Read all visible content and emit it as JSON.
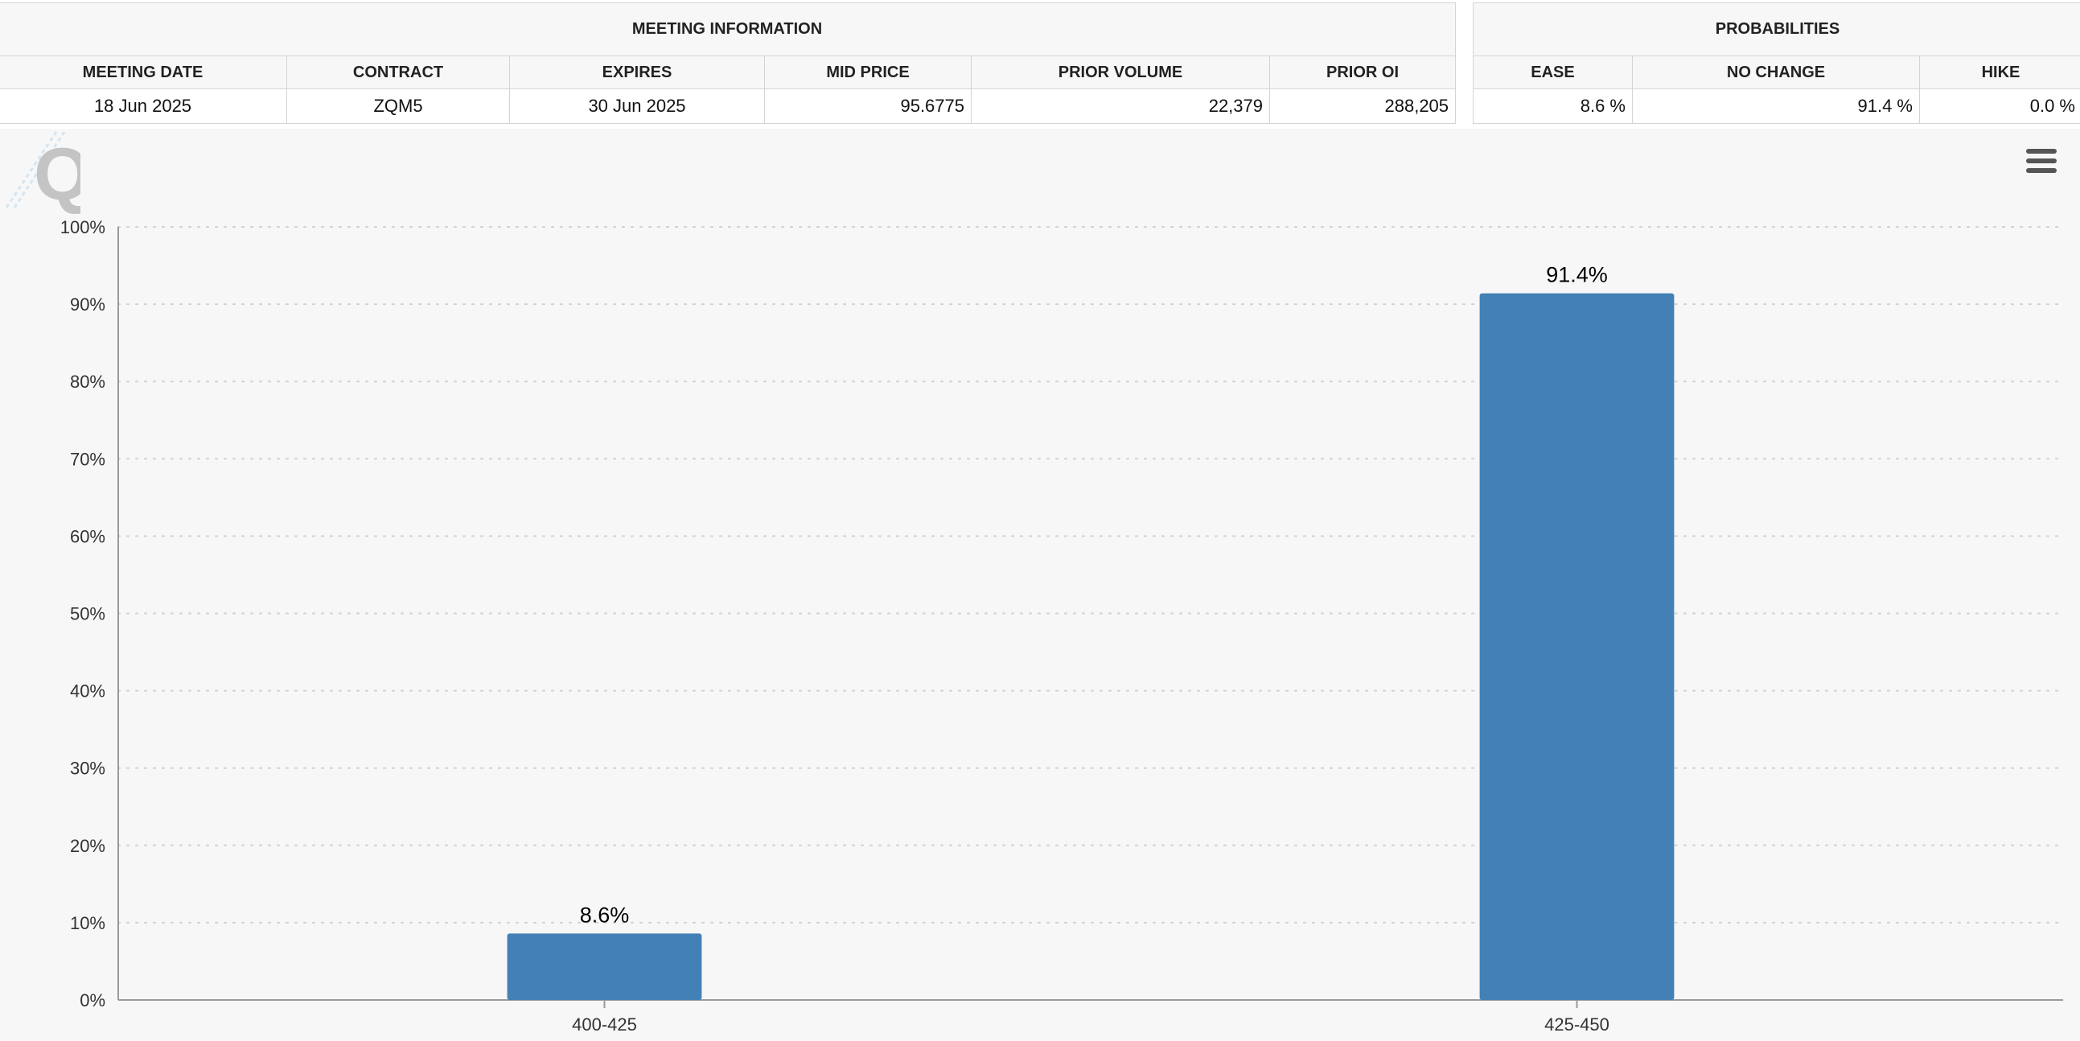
{
  "meeting_info": {
    "title": "MEETING INFORMATION",
    "headers": [
      "MEETING DATE",
      "CONTRACT",
      "EXPIRES",
      "MID PRICE",
      "PRIOR VOLUME",
      "PRIOR OI"
    ],
    "values": {
      "meeting_date": "18 Jun 2025",
      "contract": "ZQM5",
      "expires": "30 Jun 2025",
      "mid_price": "95.6775",
      "prior_volume": "22,379",
      "prior_oi": "288,205"
    }
  },
  "probabilities": {
    "title": "PROBABILITIES",
    "headers": [
      "EASE",
      "NO CHANGE",
      "HIKE"
    ],
    "values": {
      "ease": "8.6 %",
      "no_change": "91.4 %",
      "hike": "0.0 %"
    }
  },
  "chart_data": {
    "type": "bar",
    "categories": [
      "400-425",
      "425-450"
    ],
    "values": [
      8.6,
      91.4
    ],
    "data_labels": [
      "8.6%",
      "91.4%"
    ],
    "ylim": [
      0,
      100
    ],
    "yticks": [
      0,
      10,
      20,
      30,
      40,
      50,
      60,
      70,
      80,
      90,
      100
    ],
    "ytick_labels": [
      "0%",
      "10%",
      "20%",
      "30%",
      "40%",
      "50%",
      "60%",
      "70%",
      "80%",
      "90%",
      "100%"
    ],
    "grid": true,
    "bar_color": "#4380b5",
    "legend": "none"
  },
  "icons": {
    "menu": "hamburger-menu-icon",
    "watermark": "q-logo-watermark-icon"
  }
}
